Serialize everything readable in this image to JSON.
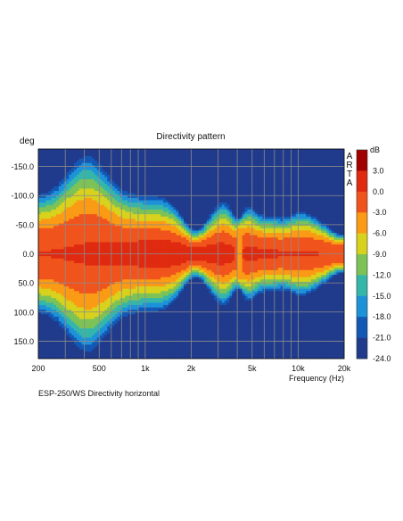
{
  "chart_data": {
    "type": "heatmap",
    "title": "Directivity pattern",
    "ylabel": "deg",
    "xlabel": "Frequency (Hz)",
    "x_scale": "log",
    "xlim": [
      200,
      20000
    ],
    "ylim": [
      -180,
      180
    ],
    "y_inverted": true,
    "x_ticks": [
      {
        "value": 200,
        "label": "200"
      },
      {
        "value": 500,
        "label": "500"
      },
      {
        "value": 1000,
        "label": "1k"
      },
      {
        "value": 2000,
        "label": "2k"
      },
      {
        "value": 5000,
        "label": "5k"
      },
      {
        "value": 10000,
        "label": "10k"
      },
      {
        "value": 20000,
        "label": "20k"
      }
    ],
    "x_gridlines": [
      200,
      300,
      400,
      500,
      600,
      700,
      800,
      900,
      1000,
      2000,
      3000,
      4000,
      5000,
      6000,
      7000,
      8000,
      9000,
      10000,
      20000
    ],
    "y_ticks": [
      {
        "value": -150,
        "label": "-150.0"
      },
      {
        "value": -100,
        "label": "-100.0"
      },
      {
        "value": -50,
        "label": "-50.0"
      },
      {
        "value": 0,
        "label": "0.0"
      },
      {
        "value": 50,
        "label": "50.0"
      },
      {
        "value": 100,
        "label": "100.0"
      },
      {
        "value": 150,
        "label": "150.0"
      }
    ],
    "colorbar": {
      "unit": "dB",
      "levels": [
        {
          "label": "3.0",
          "color": "#a00000"
        },
        {
          "label": "0.0",
          "color": "#e02a10"
        },
        {
          "label": "-3.0",
          "color": "#f0541c"
        },
        {
          "label": "-6.0",
          "color": "#fb9a14"
        },
        {
          "label": "-9.0",
          "color": "#d8d21c"
        },
        {
          "label": "-12.0",
          "color": "#7cc256"
        },
        {
          "label": "-15.0",
          "color": "#35b6aa"
        },
        {
          "label": "-18.0",
          "color": "#1d92d8"
        },
        {
          "label": "-21.0",
          "color": "#1358b5"
        },
        {
          "label": "-24.0",
          "color": "#203a8c"
        }
      ]
    },
    "watermark": "ARTA",
    "caption": "ESP-250/WS  Directivity horizontal"
  }
}
